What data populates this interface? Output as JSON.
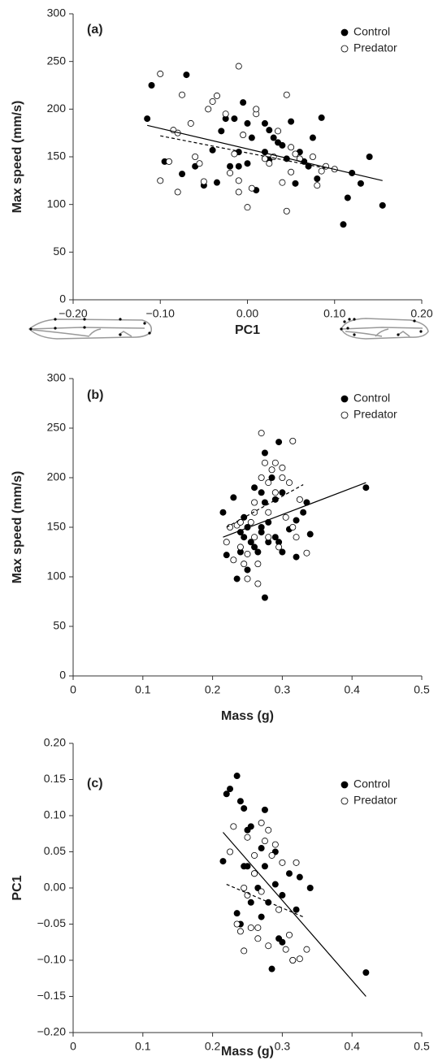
{
  "chart_data": [
    {
      "type": "scatter",
      "panel_label": "(a)",
      "xlabel": "PC1",
      "ylabel": "Max speed (mm/s)",
      "xlim": [
        -0.2,
        0.2
      ],
      "ylim": [
        0,
        300
      ],
      "xticks": [
        {
          "value": -0.2,
          "label": "−0.20"
        },
        {
          "value": -0.1,
          "label": "−0.10"
        },
        {
          "value": 0,
          "label": "0.00"
        },
        {
          "value": 0.1,
          "label": "0.10"
        },
        {
          "value": 0.2,
          "label": "0.20"
        }
      ],
      "yticks": [
        0,
        50,
        100,
        150,
        200,
        250,
        300
      ],
      "series": [
        {
          "name": "Control",
          "color": "#000000",
          "marker": "filled",
          "x": [
            -0.115,
            -0.11,
            -0.07,
            -0.095,
            -0.075,
            -0.06,
            -0.05,
            -0.04,
            -0.035,
            -0.03,
            -0.025,
            -0.015,
            -0.01,
            -0.005,
            0.0,
            0.0,
            -0.01,
            0.005,
            0.02,
            0.025,
            0.025,
            0.03,
            0.035,
            0.04,
            0.045,
            0.05,
            0.055,
            0.06,
            0.065,
            0.07,
            0.075,
            0.08,
            0.085,
            0.11,
            0.115,
            0.12,
            0.13,
            0.14,
            0.155,
            0.02,
            0.01,
            -0.02
          ],
          "values": [
            190,
            225,
            236,
            145,
            132,
            140,
            120,
            157,
            123,
            177,
            190,
            190,
            155,
            207,
            185,
            143,
            140,
            170,
            185,
            178,
            147,
            170,
            165,
            162,
            148,
            187,
            122,
            155,
            145,
            140,
            170,
            127,
            191,
            79,
            107,
            133,
            122,
            150,
            99,
            155,
            115,
            140
          ]
        },
        {
          "name": "Predator",
          "color": "#000000",
          "marker": "open",
          "x": [
            -0.1,
            -0.1,
            -0.09,
            -0.085,
            -0.08,
            -0.08,
            -0.075,
            -0.065,
            -0.06,
            -0.055,
            -0.05,
            -0.045,
            -0.04,
            -0.035,
            -0.025,
            -0.015,
            -0.01,
            -0.01,
            -0.005,
            -0.01,
            0.0,
            0.005,
            0.01,
            0.01,
            0.02,
            0.025,
            0.03,
            0.035,
            0.04,
            0.045,
            0.05,
            0.05,
            0.055,
            0.06,
            0.075,
            0.08,
            0.085,
            0.09,
            0.1,
            0.045,
            -0.02
          ],
          "values": [
            237,
            125,
            145,
            178,
            175,
            113,
            215,
            185,
            150,
            143,
            124,
            200,
            208,
            214,
            195,
            153,
            245,
            125,
            173,
            113,
            97,
            117,
            195,
            200,
            148,
            143,
            150,
            177,
            123,
            215,
            160,
            134,
            153,
            148,
            150,
            120,
            135,
            140,
            137,
            93,
            133
          ]
        }
      ],
      "fit_lines": [
        {
          "x": [
            -0.115,
            0.155
          ],
          "values": [
            183,
            125
          ],
          "dash": false
        },
        {
          "x": [
            -0.1,
            0.09
          ],
          "values": [
            172,
            138
          ],
          "dash": true
        }
      ]
    },
    {
      "type": "scatter",
      "panel_label": "(b)",
      "xlabel": "Mass (g)",
      "ylabel": "Max speed (mm/s)",
      "xlim": [
        0,
        0.5
      ],
      "ylim": [
        0,
        300
      ],
      "xticks": [
        0,
        0.1,
        0.2,
        0.3,
        0.4,
        0.5
      ],
      "yticks": [
        0,
        50,
        100,
        150,
        200,
        250,
        300
      ],
      "series": [
        {
          "name": "Control",
          "color": "#000000",
          "marker": "filled",
          "x": [
            0.215,
            0.22,
            0.235,
            0.24,
            0.24,
            0.245,
            0.25,
            0.25,
            0.255,
            0.26,
            0.26,
            0.265,
            0.27,
            0.27,
            0.275,
            0.275,
            0.275,
            0.28,
            0.28,
            0.285,
            0.29,
            0.29,
            0.295,
            0.295,
            0.3,
            0.3,
            0.31,
            0.32,
            0.32,
            0.33,
            0.335,
            0.34,
            0.42,
            0.23,
            0.245,
            0.27
          ],
          "values": [
            165,
            122,
            98,
            125,
            145,
            160,
            150,
            107,
            135,
            130,
            190,
            125,
            150,
            185,
            175,
            225,
            79,
            155,
            135,
            200,
            178,
            140,
            236,
            135,
            125,
            185,
            148,
            120,
            157,
            165,
            175,
            143,
            190,
            180,
            140,
            145
          ]
        },
        {
          "name": "Predator",
          "color": "#000000",
          "marker": "open",
          "x": [
            0.22,
            0.225,
            0.23,
            0.235,
            0.24,
            0.24,
            0.245,
            0.25,
            0.25,
            0.255,
            0.26,
            0.26,
            0.265,
            0.265,
            0.27,
            0.27,
            0.275,
            0.28,
            0.28,
            0.285,
            0.29,
            0.29,
            0.295,
            0.3,
            0.3,
            0.305,
            0.31,
            0.315,
            0.315,
            0.32,
            0.325,
            0.335,
            0.28,
            0.26
          ],
          "values": [
            135,
            150,
            117,
            152,
            130,
            155,
            113,
            123,
            98,
            155,
            140,
            175,
            113,
            93,
            245,
            200,
            215,
            195,
            165,
            208,
            215,
            185,
            130,
            210,
            200,
            160,
            195,
            237,
            150,
            140,
            178,
            124,
            140,
            165
          ]
        }
      ],
      "fit_lines": [
        {
          "x": [
            0.215,
            0.42
          ],
          "values": [
            140,
            195
          ],
          "dash": false
        },
        {
          "x": [
            0.22,
            0.33
          ],
          "values": [
            150,
            193
          ],
          "dash": true
        }
      ]
    },
    {
      "type": "scatter",
      "panel_label": "(c)",
      "xlabel": "Mass (g)",
      "ylabel": "PC1",
      "xlim": [
        0,
        0.5
      ],
      "ylim": [
        -0.2,
        0.2
      ],
      "xticks": [
        0,
        0.1,
        0.2,
        0.3,
        0.4,
        0.5
      ],
      "yticks": [
        {
          "value": -0.2,
          "label": "−0.20"
        },
        {
          "value": -0.15,
          "label": "−0.15"
        },
        {
          "value": -0.1,
          "label": "−0.10"
        },
        {
          "value": -0.05,
          "label": "−0.05"
        },
        {
          "value": 0,
          "label": "0.00"
        },
        {
          "value": 0.05,
          "label": "0.05"
        },
        {
          "value": 0.1,
          "label": "0.10"
        },
        {
          "value": 0.15,
          "label": "0.15"
        },
        {
          "value": 0.2,
          "label": "0.20"
        }
      ],
      "series": [
        {
          "name": "Control",
          "color": "#000000",
          "marker": "filled",
          "x": [
            0.215,
            0.22,
            0.225,
            0.235,
            0.24,
            0.245,
            0.25,
            0.245,
            0.235,
            0.24,
            0.255,
            0.26,
            0.255,
            0.265,
            0.27,
            0.275,
            0.275,
            0.28,
            0.285,
            0.29,
            0.29,
            0.295,
            0.3,
            0.3,
            0.31,
            0.315,
            0.32,
            0.325,
            0.34,
            0.42,
            0.25,
            0.27
          ],
          "values": [
            0.037,
            0.13,
            0.137,
            0.155,
            0.12,
            0.11,
            0.08,
            0.03,
            -0.035,
            -0.05,
            0.085,
            0.02,
            -0.02,
            0.0,
            0.055,
            0.108,
            0.03,
            -0.02,
            -0.112,
            0.05,
            0.005,
            -0.07,
            -0.075,
            -0.01,
            0.02,
            -0.1,
            -0.03,
            0.015,
            0.0,
            -0.117,
            0.03,
            -0.04
          ]
        },
        {
          "name": "Predator",
          "color": "#000000",
          "marker": "open",
          "x": [
            0.225,
            0.23,
            0.235,
            0.24,
            0.245,
            0.245,
            0.25,
            0.255,
            0.26,
            0.26,
            0.265,
            0.27,
            0.27,
            0.275,
            0.28,
            0.28,
            0.285,
            0.29,
            0.295,
            0.3,
            0.305,
            0.31,
            0.315,
            0.32,
            0.325,
            0.335,
            0.265,
            0.25
          ],
          "values": [
            0.05,
            0.085,
            -0.05,
            -0.06,
            -0.087,
            0.0,
            0.07,
            -0.055,
            0.02,
            0.045,
            -0.07,
            0.09,
            -0.005,
            0.065,
            0.08,
            -0.08,
            0.045,
            0.06,
            -0.03,
            0.035,
            -0.085,
            -0.065,
            -0.1,
            0.035,
            -0.098,
            -0.085,
            -0.055,
            -0.01
          ]
        }
      ],
      "fit_lines": [
        {
          "x": [
            0.215,
            0.42
          ],
          "values": [
            0.077,
            -0.15
          ],
          "dash": false
        },
        {
          "x": [
            0.22,
            0.33
          ],
          "values": [
            0.005,
            -0.04
          ],
          "dash": true
        }
      ]
    }
  ]
}
